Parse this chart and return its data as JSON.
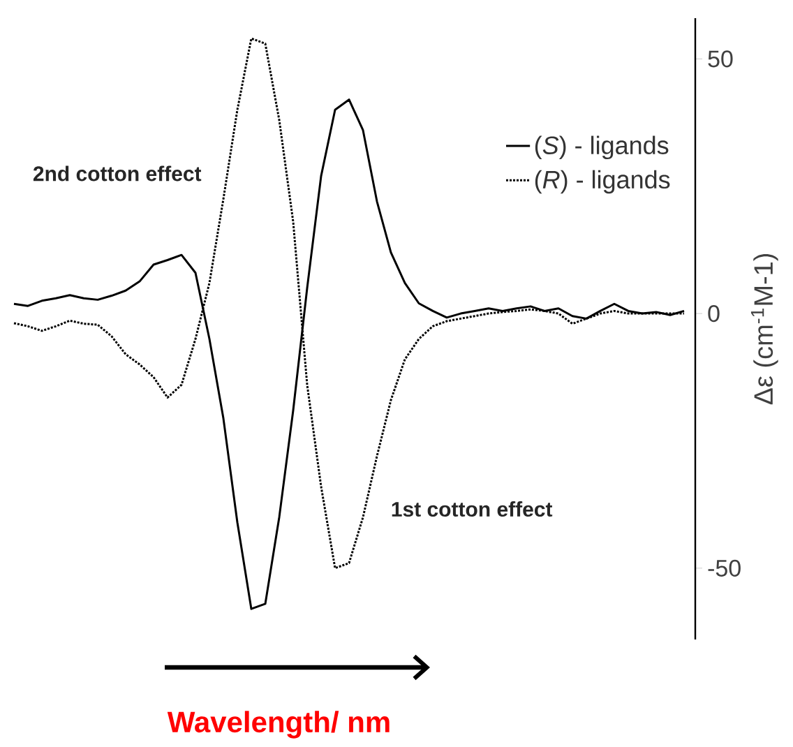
{
  "chart_data": {
    "type": "line",
    "xlabel": "Wavelength/ nm",
    "ylabel": "Δε (cm$^{-1}$M-1)",
    "categories": [
      null,
      null,
      null,
      null,
      null,
      null,
      null,
      null,
      null,
      null,
      null,
      null,
      null,
      null,
      null,
      null,
      null,
      null,
      null,
      null,
      null,
      null,
      null,
      null,
      null,
      null,
      null,
      null,
      null,
      null,
      null,
      null,
      null,
      null,
      null,
      null,
      null,
      null,
      null,
      null,
      null,
      null,
      null,
      null,
      null,
      null,
      null,
      null,
      null
    ],
    "series": [
      {
        "name": "(*S*) - ligands",
        "color": "#000000",
        "line_style": "solid",
        "values": [
          1.9,
          1.5,
          2.5,
          3,
          3.6,
          3,
          2.7,
          3.5,
          4.5,
          6.3,
          9.6,
          10.5,
          11.5,
          8,
          -5,
          -20.6,
          -41,
          -58,
          -57,
          -40,
          -19,
          5,
          27,
          40,
          42,
          36,
          22,
          12,
          6,
          2,
          0.5,
          -0.8,
          0,
          0.5,
          1,
          0.5,
          1,
          1.4,
          0.5,
          1,
          -0.5,
          -1,
          0.5,
          1.9,
          0.5,
          0,
          0.3,
          -0.3,
          0.5
        ]
      },
      {
        "name": "(*R*) - ligands",
        "color": "#000000",
        "line_style": "dotted",
        "values": [
          -1.9,
          -2.5,
          -3.4,
          -2.5,
          -1.4,
          -2,
          -2.2,
          -4.5,
          -8,
          -10,
          -12.5,
          -16.5,
          -14,
          -5,
          6,
          22.5,
          40,
          54,
          53,
          38,
          18,
          -14,
          -34,
          -50,
          -49,
          -40,
          -28,
          -17,
          -9,
          -5,
          -2.5,
          -1.5,
          -1,
          -0.5,
          0,
          0.3,
          0.5,
          0.8,
          0.5,
          0,
          -2,
          -1,
          0,
          0.5,
          0,
          0,
          0,
          0,
          0
        ]
      }
    ],
    "ylim": [
      -64,
      58
    ],
    "yticks": [
      -50,
      0,
      50
    ],
    "legend": "top right",
    "annotations": [
      "2nd cotton effect",
      "1st cotton effect"
    ]
  }
}
